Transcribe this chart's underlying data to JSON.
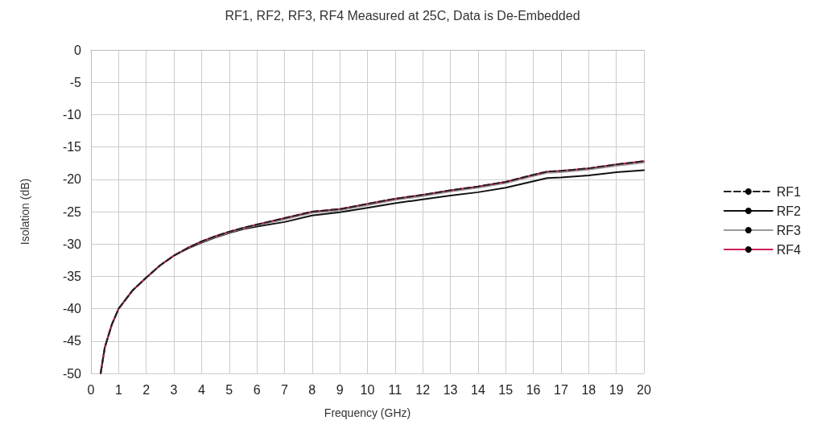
{
  "chart_data": {
    "type": "line",
    "title": "RF1, RF2, RF3, RF4 Measured at 25C, Data is De-Embedded",
    "xlabel": "Frequency (GHz)",
    "ylabel": "Isolation (dB)",
    "x": [
      0.35,
      0.5,
      0.75,
      1,
      1.5,
      2,
      2.5,
      3,
      3.5,
      4,
      4.5,
      5,
      5.5,
      6,
      7,
      8,
      9,
      10,
      11,
      12,
      13,
      14,
      15,
      16,
      16.5,
      17,
      18,
      19,
      20
    ],
    "series": [
      {
        "name": "RF1",
        "color": "#222222",
        "line_style": "dashed",
        "values": [
          -50,
          -46,
          -42.5,
          -40,
          -37.2,
          -35.2,
          -33.3,
          -31.8,
          -30.6,
          -29.6,
          -28.8,
          -28.1,
          -27.5,
          -27,
          -26,
          -25,
          -24.6,
          -23.8,
          -23,
          -22.4,
          -21.7,
          -21.1,
          -20.4,
          -19.3,
          -18.8,
          -18.7,
          -18.3,
          -17.7,
          -17.2
        ]
      },
      {
        "name": "RF2",
        "color": "#111111",
        "line_style": "solid",
        "values": [
          -50,
          -46,
          -42.5,
          -40,
          -37.2,
          -35.2,
          -33.3,
          -31.8,
          -30.7,
          -29.8,
          -29,
          -28.3,
          -27.7,
          -27.3,
          -26.6,
          -25.6,
          -25.1,
          -24.4,
          -23.7,
          -23.1,
          -22.5,
          -22,
          -21.3,
          -20.3,
          -19.8,
          -19.7,
          -19.4,
          -18.9,
          -18.6
        ]
      },
      {
        "name": "RF3",
        "color": "#999999",
        "line_style": "solid",
        "values": [
          -50,
          -46,
          -42.5,
          -40,
          -37.2,
          -35.2,
          -33.3,
          -31.8,
          -30.6,
          -29.7,
          -28.9,
          -28.2,
          -27.6,
          -27.1,
          -26.2,
          -25.2,
          -24.8,
          -24,
          -23.2,
          -22.6,
          -21.9,
          -21.3,
          -20.6,
          -19.5,
          -19,
          -18.9,
          -18.5,
          -17.9,
          -17.4
        ]
      },
      {
        "name": "RF4",
        "color": "#cc2255",
        "line_style": "solid",
        "values": [
          -50,
          -46,
          -42.5,
          -40,
          -37.2,
          -35.2,
          -33.3,
          -31.8,
          -30.6,
          -29.6,
          -28.8,
          -28.1,
          -27.5,
          -27,
          -26,
          -25,
          -24.6,
          -23.8,
          -23,
          -22.4,
          -21.7,
          -21.1,
          -20.4,
          -19.3,
          -18.8,
          -18.7,
          -18.3,
          -17.7,
          -17.2
        ]
      }
    ],
    "xlim": [
      0,
      20
    ],
    "xticks": [
      0,
      1,
      2,
      3,
      4,
      5,
      6,
      7,
      8,
      9,
      10,
      11,
      12,
      13,
      14,
      15,
      16,
      17,
      18,
      19,
      20
    ],
    "ylim": [
      -50,
      0
    ],
    "yticks": [
      -50,
      -45,
      -40,
      -35,
      -30,
      -25,
      -20,
      -15,
      -10,
      -5,
      0
    ],
    "grid": true,
    "legend": "right",
    "marker": "none"
  }
}
